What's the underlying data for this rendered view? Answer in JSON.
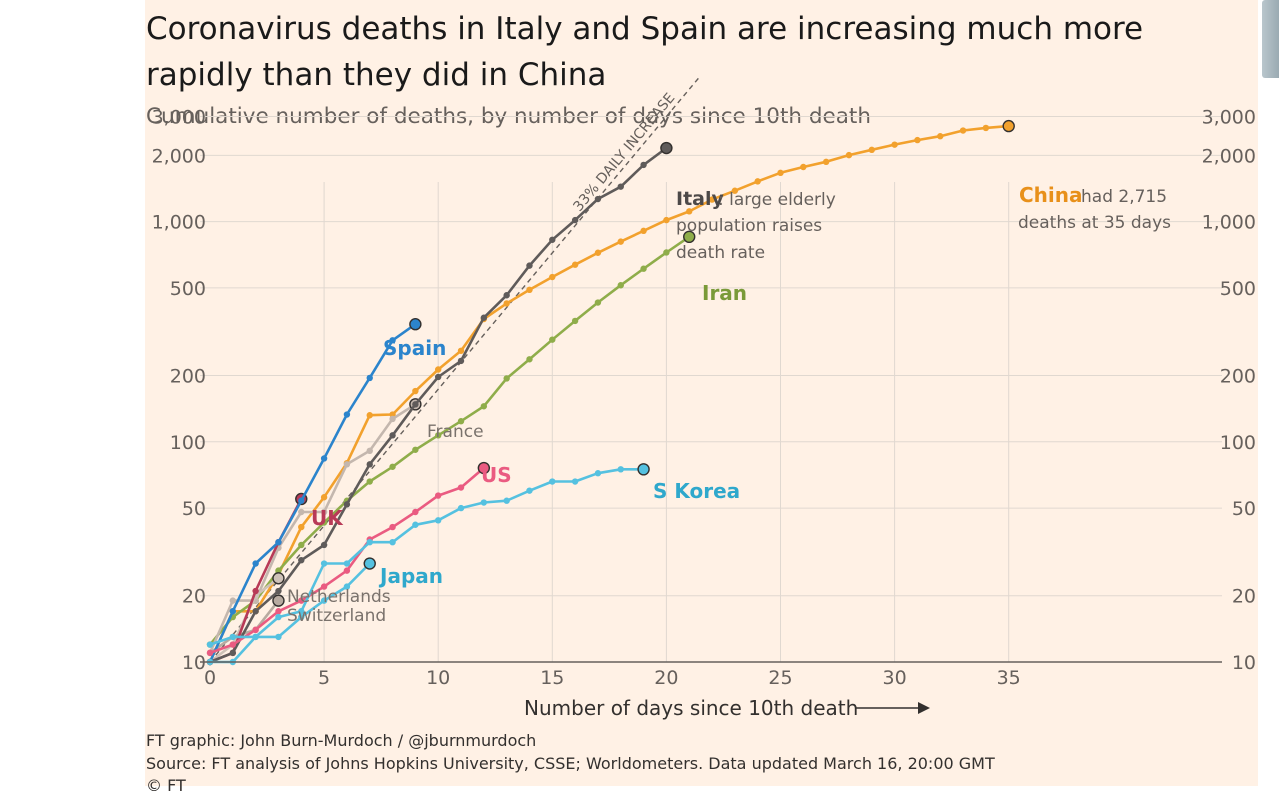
{
  "title": "Coronavirus deaths in Italy and Spain are increasing much more rapidly than they did in China",
  "subtitle": "Cumulative number of deaths, by number of days since 10th death",
  "credit": "FT graphic: John Burn-Murdoch / @jburnmurdoch",
  "source": "Source: FT analysis of Johns Hopkins University, CSSE; Worldometers. Data updated March 16, 20:00 GMT",
  "copyright": "© FT",
  "colors": {
    "background": "#fff1e5",
    "grid": "#e0d8d0",
    "spain": "#2b84cc",
    "italy": "#5f5b5a",
    "china": "#f2a12d",
    "iran": "#8fad4a",
    "us": "#ea5b81",
    "uk": "#b83a57",
    "korea": "#55c1e0",
    "france": "#c4b7ae"
  },
  "chart_data": {
    "type": "line",
    "title": "Coronavirus deaths in Italy and Spain are increasing much more rapidly than they did in China",
    "subtitle": "Cumulative number of deaths, by number of days since 10th death",
    "xlabel": "Number of days since 10th death",
    "ylabel": "",
    "xlim": [
      0,
      44.5
    ],
    "ylim": [
      10,
      3000
    ],
    "yscale": "log",
    "x_ticks": [
      0,
      5,
      10,
      15,
      20,
      25,
      30,
      35
    ],
    "y_ticks": [
      10,
      20,
      50,
      100,
      200,
      500,
      1000,
      2000,
      3000
    ],
    "y_tick_labels": [
      "10",
      "20",
      "50",
      "100",
      "200",
      "500",
      "1,000",
      "2,000",
      "3,000"
    ],
    "grid": true,
    "reference_line": {
      "label": "33% DAILY INCREASE",
      "start": [
        0,
        10
      ],
      "daily_factor": 1.33
    },
    "series": [
      {
        "name": "China",
        "label": "China",
        "note": "had 2,715 deaths at 35 days",
        "color": "#f2a12d",
        "values": [
          [
            0,
            10
          ],
          [
            1,
            17
          ],
          [
            2,
            17
          ],
          [
            3,
            25
          ],
          [
            4,
            41
          ],
          [
            5,
            56
          ],
          [
            6,
            80
          ],
          [
            7,
            132
          ],
          [
            8,
            133
          ],
          [
            9,
            170
          ],
          [
            10,
            213
          ],
          [
            11,
            259
          ],
          [
            12,
            361
          ],
          [
            13,
            425
          ],
          [
            14,
            490
          ],
          [
            15,
            560
          ],
          [
            16,
            637
          ],
          [
            17,
            722
          ],
          [
            18,
            811
          ],
          [
            19,
            908
          ],
          [
            20,
            1016
          ],
          [
            21,
            1113
          ],
          [
            22,
            1259
          ],
          [
            23,
            1381
          ],
          [
            24,
            1523
          ],
          [
            25,
            1665
          ],
          [
            26,
            1770
          ],
          [
            27,
            1868
          ],
          [
            28,
            2004
          ],
          [
            29,
            2118
          ],
          [
            30,
            2236
          ],
          [
            31,
            2345
          ],
          [
            32,
            2442
          ],
          [
            33,
            2592
          ],
          [
            34,
            2663
          ],
          [
            35,
            2715
          ]
        ]
      },
      {
        "name": "Iran",
        "label": "Iran",
        "color": "#8fad4a",
        "values": [
          [
            0,
            12
          ],
          [
            1,
            16
          ],
          [
            2,
            19
          ],
          [
            3,
            26
          ],
          [
            4,
            34
          ],
          [
            5,
            43
          ],
          [
            6,
            54
          ],
          [
            7,
            66
          ],
          [
            8,
            77
          ],
          [
            9,
            92
          ],
          [
            10,
            107
          ],
          [
            11,
            124
          ],
          [
            12,
            145
          ],
          [
            13,
            194
          ],
          [
            14,
            237
          ],
          [
            15,
            291
          ],
          [
            16,
            354
          ],
          [
            17,
            429
          ],
          [
            18,
            514
          ],
          [
            19,
            611
          ],
          [
            20,
            724
          ],
          [
            21,
            853
          ]
        ]
      },
      {
        "name": "France",
        "label": "France",
        "color": "#c4b7ae",
        "values": [
          [
            0,
            11
          ],
          [
            1,
            19
          ],
          [
            2,
            19
          ],
          [
            3,
            33
          ],
          [
            4,
            48
          ],
          [
            5,
            48
          ],
          [
            6,
            79
          ],
          [
            7,
            91
          ],
          [
            8,
            127
          ],
          [
            9,
            148
          ]
        ]
      },
      {
        "name": "Netherlands",
        "label": "Netherlands",
        "color": "#cfc2b8",
        "values": [
          [
            0,
            10
          ],
          [
            1,
            12
          ],
          [
            2,
            20
          ],
          [
            3,
            24
          ]
        ]
      },
      {
        "name": "Switzerland",
        "label": "Switzerland",
        "color": "#b7aaa0",
        "values": [
          [
            0,
            11
          ],
          [
            1,
            13
          ],
          [
            2,
            14
          ],
          [
            3,
            19
          ]
        ]
      },
      {
        "name": "UK",
        "label": "UK",
        "color": "#b83a57",
        "values": [
          [
            0,
            10
          ],
          [
            1,
            11
          ],
          [
            2,
            21
          ],
          [
            3,
            35
          ],
          [
            4,
            55
          ]
        ]
      },
      {
        "name": "Spain",
        "label": "Spain",
        "color": "#2b84cc",
        "values": [
          [
            0,
            10
          ],
          [
            1,
            17
          ],
          [
            2,
            28
          ],
          [
            3,
            35
          ],
          [
            4,
            54
          ],
          [
            5,
            84
          ],
          [
            6,
            133
          ],
          [
            7,
            195
          ],
          [
            8,
            289
          ],
          [
            9,
            342
          ]
        ]
      },
      {
        "name": "Italy",
        "label": "Italy",
        "note": ": large elderly population raises death rate",
        "color": "#5f5b5a",
        "values": [
          [
            0,
            10
          ],
          [
            1,
            11
          ],
          [
            2,
            17
          ],
          [
            3,
            21
          ],
          [
            4,
            29
          ],
          [
            5,
            34
          ],
          [
            6,
            52
          ],
          [
            7,
            79
          ],
          [
            8,
            107
          ],
          [
            9,
            148
          ],
          [
            10,
            197
          ],
          [
            11,
            233
          ],
          [
            12,
            366
          ],
          [
            13,
            463
          ],
          [
            14,
            631
          ],
          [
            15,
            827
          ],
          [
            16,
            1016
          ],
          [
            17,
            1266
          ],
          [
            18,
            1441
          ],
          [
            19,
            1809
          ],
          [
            20,
            2158
          ]
        ]
      },
      {
        "name": "US",
        "label": "US",
        "color": "#ea5b81",
        "values": [
          [
            0,
            11
          ],
          [
            1,
            12
          ],
          [
            2,
            14
          ],
          [
            3,
            17
          ],
          [
            4,
            19
          ],
          [
            5,
            22
          ],
          [
            6,
            26
          ],
          [
            7,
            36
          ],
          [
            8,
            41
          ],
          [
            9,
            48
          ],
          [
            10,
            57
          ],
          [
            11,
            62
          ],
          [
            12,
            76
          ]
        ]
      },
      {
        "name": "Japan",
        "label": "Japan",
        "color": "#55c1e0",
        "values": [
          [
            0,
            10
          ],
          [
            1,
            10
          ],
          [
            2,
            13
          ],
          [
            3,
            13
          ],
          [
            4,
            16
          ],
          [
            5,
            19
          ],
          [
            6,
            22
          ],
          [
            7,
            28
          ]
        ]
      },
      {
        "name": "S Korea",
        "label": "S Korea",
        "color": "#55c1e0",
        "values": [
          [
            0,
            12
          ],
          [
            1,
            13
          ],
          [
            2,
            13
          ],
          [
            3,
            16
          ],
          [
            4,
            17
          ],
          [
            5,
            28
          ],
          [
            6,
            28
          ],
          [
            7,
            35
          ],
          [
            8,
            35
          ],
          [
            9,
            42
          ],
          [
            10,
            44
          ],
          [
            11,
            50
          ],
          [
            12,
            53
          ],
          [
            13,
            54
          ],
          [
            14,
            60
          ],
          [
            15,
            66
          ],
          [
            16,
            66
          ],
          [
            17,
            72
          ],
          [
            18,
            75
          ],
          [
            19,
            75
          ]
        ]
      }
    ]
  }
}
